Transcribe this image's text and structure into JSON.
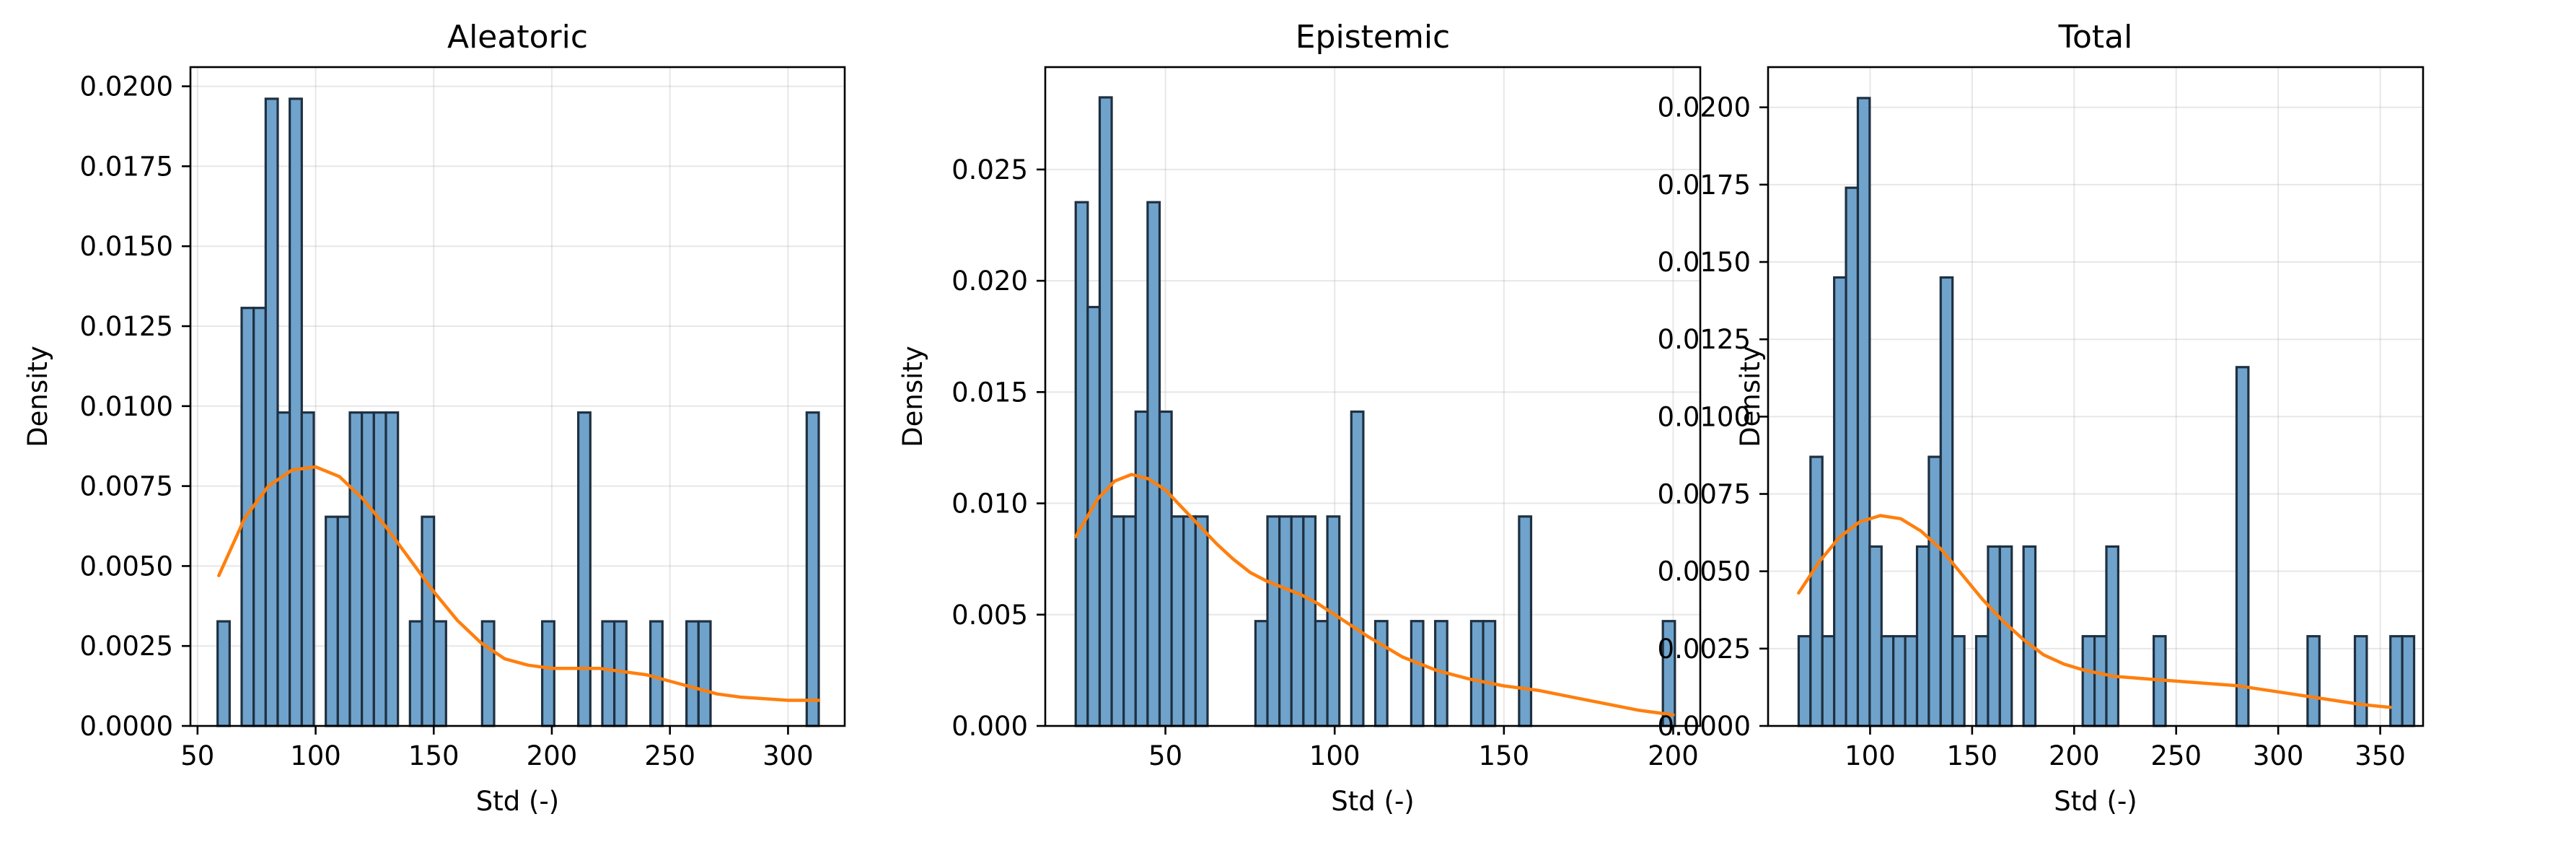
{
  "chart_data": [
    {
      "type": "bar",
      "title": "Aleatoric",
      "xlabel": "Std (-)",
      "ylabel": "Density",
      "xlim": [
        47,
        324
      ],
      "ylim": [
        0,
        0.0206
      ],
      "xticks": [
        50,
        100,
        150,
        200,
        250,
        300
      ],
      "yticks": [
        0.0,
        0.0025,
        0.005,
        0.0075,
        0.01,
        0.0125,
        0.015,
        0.0175,
        0.02
      ],
      "ytick_labels": [
        "0.0000",
        "0.0025",
        "0.0050",
        "0.0075",
        "0.0100",
        "0.0125",
        "0.0150",
        "0.0175",
        "0.0200"
      ],
      "grid": true,
      "bin_start": 58.5,
      "bin_width": 5.09,
      "bin_density": [
        0.00327,
        0,
        0.01307,
        0.01307,
        0.01961,
        0.0098,
        0.01961,
        0.0098,
        0,
        0.00654,
        0.00654,
        0.0098,
        0.0098,
        0.0098,
        0.0098,
        0,
        0.00327,
        0.00654,
        0.00327,
        0,
        0,
        0,
        0.00327,
        0,
        0,
        0,
        0,
        0.00327,
        0,
        0,
        0.0098,
        0,
        0.00327,
        0.00327,
        0,
        0,
        0.00327,
        0,
        0,
        0.00327,
        0.00327,
        0,
        0,
        0,
        0,
        0,
        0,
        0,
        0,
        0.0098
      ],
      "series": [
        {
          "type": "kde",
          "color": "#ff7f0e",
          "x": [
            59,
            70,
            80,
            90,
            100,
            110,
            120,
            130,
            140,
            150,
            160,
            170,
            180,
            190,
            200,
            210,
            220,
            230,
            240,
            250,
            260,
            270,
            280,
            290,
            300,
            313
          ],
          "y": [
            0.0047,
            0.0065,
            0.0075,
            0.008,
            0.0081,
            0.0078,
            0.0071,
            0.0062,
            0.0052,
            0.0042,
            0.0033,
            0.0026,
            0.0021,
            0.0019,
            0.0018,
            0.0018,
            0.0018,
            0.0017,
            0.0016,
            0.0014,
            0.0012,
            0.001,
            0.0009,
            0.00085,
            0.0008,
            0.0008
          ]
        }
      ]
    },
    {
      "type": "bar",
      "title": "Epistemic",
      "xlabel": "Std (-)",
      "ylabel": "Density",
      "xlim": [
        14.5,
        208
      ],
      "ylim": [
        0,
        0.0296
      ],
      "xticks": [
        50,
        100,
        150,
        200
      ],
      "yticks": [
        0.0,
        0.005,
        0.01,
        0.015,
        0.02,
        0.025
      ],
      "ytick_labels": [
        "0.000",
        "0.005",
        "0.010",
        "0.015",
        "0.020",
        "0.025"
      ],
      "grid": true,
      "bin_start": 23.5,
      "bin_width": 3.54,
      "bin_density": [
        0.02353,
        0.01882,
        0.02824,
        0.00941,
        0.00941,
        0.01412,
        0.02353,
        0.01412,
        0.00941,
        0.00941,
        0.00941,
        0,
        0,
        0,
        0,
        0.00471,
        0.00941,
        0.00941,
        0.00941,
        0.00941,
        0.00471,
        0.00941,
        0,
        0.01412,
        0,
        0.00471,
        0,
        0,
        0.00471,
        0,
        0.00471,
        0,
        0,
        0.00471,
        0.00471,
        0,
        0,
        0.00941,
        0,
        0,
        0,
        0,
        0,
        0,
        0,
        0,
        0,
        0,
        0,
        0.00471
      ],
      "series": [
        {
          "type": "kde",
          "color": "#ff7f0e",
          "x": [
            23.5,
            30,
            35,
            40,
            45,
            50,
            55,
            60,
            65,
            70,
            75,
            80,
            85,
            90,
            95,
            100,
            110,
            120,
            130,
            140,
            150,
            160,
            170,
            180,
            190,
            200
          ],
          "y": [
            0.0085,
            0.0102,
            0.011,
            0.0113,
            0.0111,
            0.0106,
            0.0098,
            0.009,
            0.0082,
            0.0075,
            0.0069,
            0.0065,
            0.0062,
            0.0059,
            0.0055,
            0.005,
            0.004,
            0.0031,
            0.0025,
            0.0021,
            0.0018,
            0.0016,
            0.0013,
            0.001,
            0.0007,
            0.0005
          ]
        }
      ]
    },
    {
      "type": "bar",
      "title": "Total",
      "xlabel": "Std (-)",
      "ylabel": "Density",
      "xlim": [
        50,
        371
      ],
      "ylim": [
        0,
        0.0213
      ],
      "xticks": [
        100,
        150,
        200,
        250,
        300,
        350
      ],
      "yticks": [
        0.0,
        0.0025,
        0.005,
        0.0075,
        0.01,
        0.0125,
        0.015,
        0.0175,
        0.02
      ],
      "ytick_labels": [
        "0.0000",
        "0.0025",
        "0.0050",
        "0.0075",
        "0.0100",
        "0.0125",
        "0.0150",
        "0.0175",
        "0.0200"
      ],
      "grid": true,
      "bin_start": 65,
      "bin_width": 5.8,
      "bin_density": [
        0.0029,
        0.0087,
        0.0029,
        0.0145,
        0.0174,
        0.0203,
        0.0058,
        0.0029,
        0.0029,
        0.0029,
        0.0058,
        0.0087,
        0.0145,
        0.0029,
        0,
        0.0029,
        0.0058,
        0.0058,
        0,
        0.0058,
        0,
        0,
        0,
        0,
        0.0029,
        0.0029,
        0.0058,
        0,
        0,
        0,
        0.0029,
        0,
        0,
        0,
        0,
        0,
        0,
        0.0116,
        0,
        0,
        0,
        0,
        0,
        0.0029,
        0,
        0,
        0,
        0.0029,
        0,
        0,
        0.0029,
        0.0029
      ],
      "series": [
        {
          "type": "kde",
          "color": "#ff7f0e",
          "x": [
            65,
            75,
            85,
            95,
            105,
            115,
            125,
            135,
            145,
            155,
            165,
            175,
            185,
            195,
            205,
            220,
            240,
            260,
            280,
            300,
            320,
            340,
            355
          ],
          "y": [
            0.0043,
            0.0053,
            0.0061,
            0.0066,
            0.0068,
            0.0067,
            0.0063,
            0.0057,
            0.0049,
            0.0041,
            0.0034,
            0.0028,
            0.0023,
            0.002,
            0.0018,
            0.0016,
            0.0015,
            0.0014,
            0.0013,
            0.0011,
            0.0009,
            0.0007,
            0.0006
          ]
        }
      ]
    }
  ]
}
